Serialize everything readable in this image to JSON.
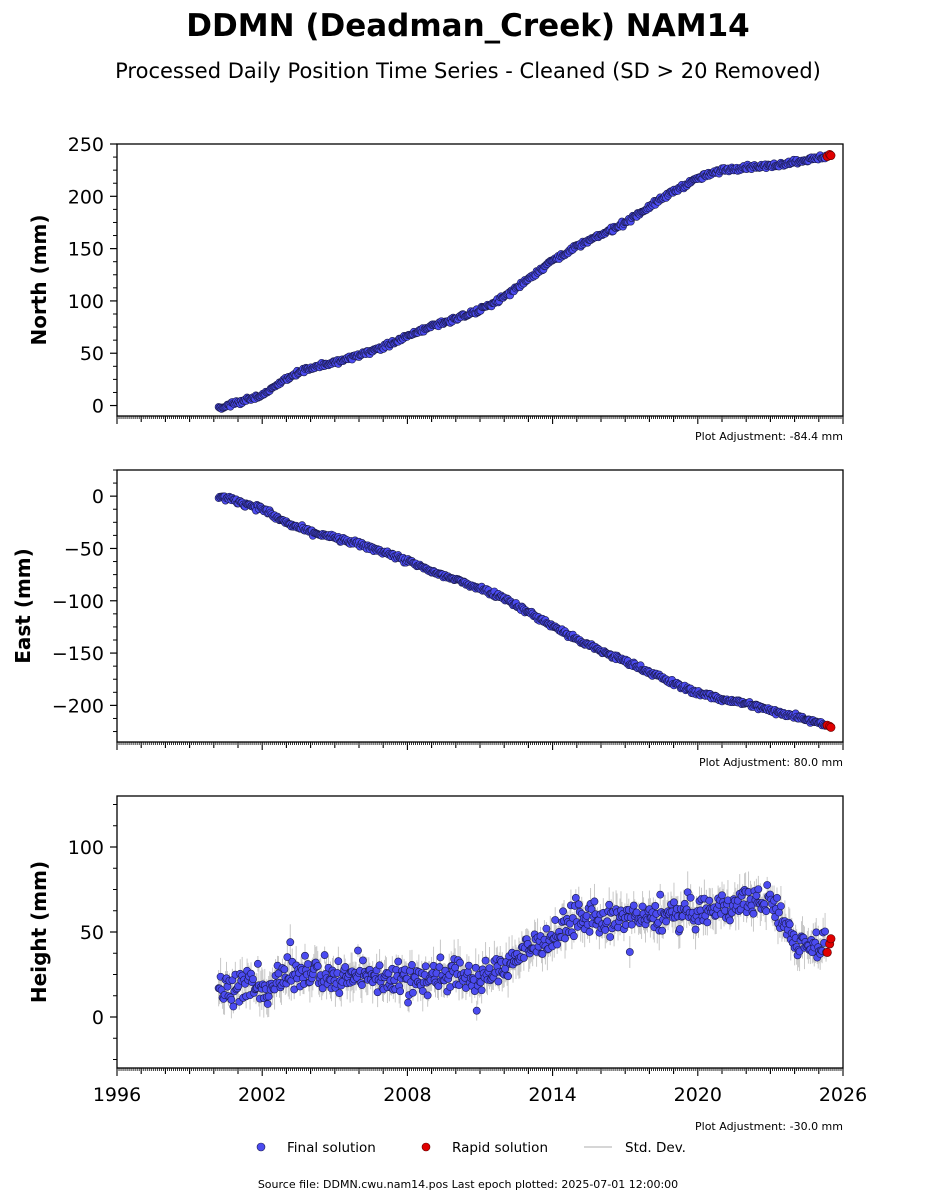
{
  "figure": {
    "title": "DDMN (Deadman_Creek) NAM14",
    "subtitle": "Processed Daily Position Time Series - Cleaned (SD > 20 Removed)",
    "source": "Source file: DDMN.cwu.nam14.pos  Last epoch plotted: 2025-07-01 12:00:00"
  },
  "legend": {
    "final": "Final solution",
    "rapid": "Rapid solution",
    "std": "Std. Dev."
  },
  "colors": {
    "final": "#4b4bf0",
    "final_edge": "#1a1a4a",
    "rapid": "#e00000",
    "std": "#c8c8c8"
  },
  "panels": [
    {
      "ylabel": "North (mm)",
      "adjustment": "Plot Adjustment: -84.4 mm",
      "yticks": [
        "0",
        "50",
        "100",
        "150",
        "200",
        "250"
      ],
      "xticks": [
        "1996",
        "2002",
        "2008",
        "2014",
        "2020",
        "2026"
      ]
    },
    {
      "ylabel": "East (mm)",
      "adjustment": "Plot Adjustment: 80.0 mm",
      "yticks": [
        "0",
        "−50",
        "−100",
        "−150",
        "−200"
      ],
      "xticks": [
        "1996",
        "2002",
        "2008",
        "2014",
        "2020",
        "2026"
      ]
    },
    {
      "ylabel": "Height (mm)",
      "adjustment": "Plot Adjustment: -30.0 mm",
      "yticks": [
        "0",
        "50",
        "100"
      ],
      "xticks": [
        "1996",
        "2002",
        "2008",
        "2014",
        "2020",
        "2026"
      ]
    }
  ],
  "chart_data": [
    {
      "type": "scatter",
      "ylabel": "North (mm)",
      "xlim": [
        1996,
        2026
      ],
      "ylim": [
        -10,
        250
      ],
      "yticks": [
        0,
        50,
        100,
        150,
        200,
        250
      ],
      "xticks": [
        1996,
        2002,
        2008,
        2014,
        2020,
        2026
      ],
      "grid": false,
      "series": [
        {
          "name": "Final solution",
          "x": [
            2000.2,
            2000.8,
            2001.5,
            2002.0,
            2002.5,
            2003.0,
            2003.5,
            2004.0,
            2005.0,
            2006.0,
            2007.0,
            2008.0,
            2009.0,
            2010.0,
            2011.0,
            2012.0,
            2013.0,
            2014.0,
            2015.0,
            2016.0,
            2017.0,
            2018.0,
            2019.0,
            2020.0,
            2021.0,
            2022.0,
            2023.0,
            2024.0,
            2025.3
          ],
          "y": [
            -3,
            2,
            6,
            10,
            18,
            26,
            32,
            36,
            41,
            48,
            56,
            66,
            76,
            83,
            91,
            104,
            121,
            139,
            152,
            163,
            175,
            190,
            205,
            217,
            225,
            228,
            229,
            233,
            238
          ]
        },
        {
          "name": "Rapid solution",
          "x": [
            2025.35,
            2025.45,
            2025.5
          ],
          "y": [
            238,
            240,
            239
          ]
        }
      ]
    },
    {
      "type": "scatter",
      "ylabel": "East (mm)",
      "xlim": [
        1996,
        2026
      ],
      "ylim": [
        -235,
        25
      ],
      "yticks": [
        0,
        -50,
        -100,
        -150,
        -200
      ],
      "xticks": [
        1996,
        2002,
        2008,
        2014,
        2020,
        2026
      ],
      "grid": false,
      "series": [
        {
          "name": "Final solution",
          "x": [
            2000.2,
            2001.0,
            2002.0,
            2003.0,
            2004.0,
            2005.0,
            2006.0,
            2007.0,
            2008.0,
            2009.0,
            2010.0,
            2011.0,
            2012.0,
            2013.0,
            2014.0,
            2015.0,
            2016.0,
            2017.0,
            2018.0,
            2019.0,
            2020.0,
            2021.0,
            2022.0,
            2023.0,
            2024.0,
            2025.3
          ],
          "y": [
            0,
            -5,
            -12,
            -26,
            -34,
            -40,
            -46,
            -53,
            -62,
            -72,
            -80,
            -88,
            -97,
            -111,
            -124,
            -137,
            -148,
            -158,
            -168,
            -179,
            -188,
            -194,
            -198,
            -205,
            -210,
            -218
          ]
        },
        {
          "name": "Rapid solution",
          "x": [
            2025.35,
            2025.45,
            2025.5
          ],
          "y": [
            -219,
            -220,
            -221
          ]
        }
      ]
    },
    {
      "type": "scatter",
      "ylabel": "Height (mm)",
      "xlim": [
        1996,
        2026
      ],
      "ylim": [
        -30,
        130
      ],
      "yticks": [
        0,
        50,
        100
      ],
      "xticks": [
        1996,
        2002,
        2008,
        2014,
        2020,
        2026
      ],
      "grid": false,
      "series": [
        {
          "name": "Final solution",
          "x": [
            2000.2,
            2001.0,
            2002.0,
            2003.0,
            2004.0,
            2005.0,
            2006.0,
            2007.0,
            2008.0,
            2009.0,
            2010.0,
            2011.0,
            2012.0,
            2013.0,
            2014.0,
            2015.0,
            2016.0,
            2017.0,
            2018.0,
            2019.0,
            2020.0,
            2021.0,
            2022.0,
            2023.0,
            2024.0,
            2025.3
          ],
          "y": [
            15,
            18,
            16,
            24,
            28,
            22,
            24,
            24,
            22,
            24,
            25,
            22,
            30,
            40,
            48,
            58,
            56,
            58,
            58,
            60,
            62,
            64,
            68,
            68,
            45,
            42
          ]
        },
        {
          "name": "Rapid solution",
          "x": [
            2025.35,
            2025.45,
            2025.5
          ],
          "y": [
            38,
            43,
            46
          ]
        }
      ]
    }
  ]
}
